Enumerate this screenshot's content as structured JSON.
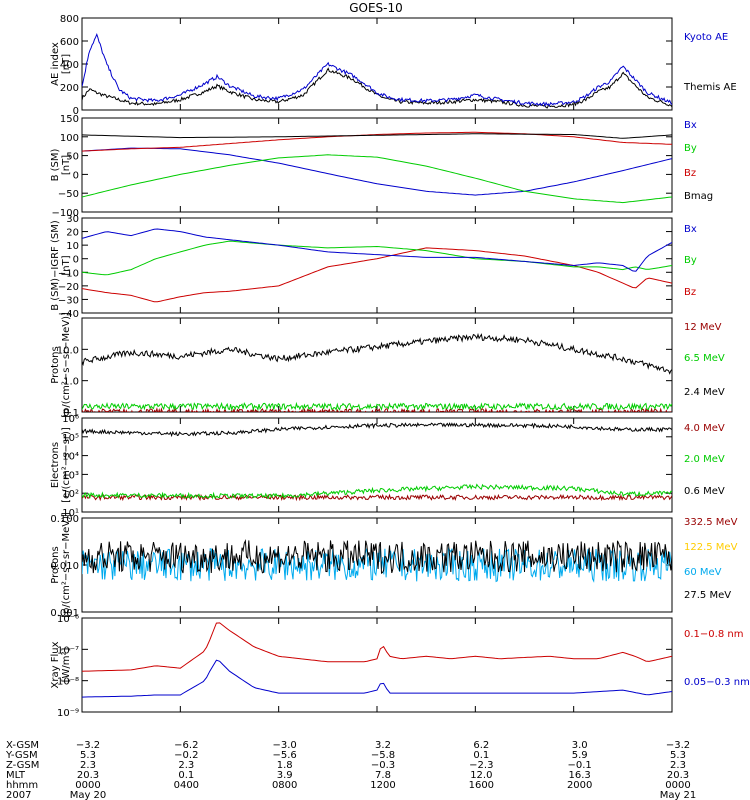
{
  "title": "GOES-10",
  "colors": {
    "black": "#000000",
    "blue": "#0000cc",
    "red": "#cc0000",
    "green": "#00cc00",
    "darkred": "#990000",
    "yellow": "#ffcc00",
    "cyan": "#00aaee"
  },
  "panels": [
    {
      "id": "ae",
      "ylabel": [
        "AE index",
        "[nT]"
      ],
      "scale": "linear",
      "ylim": [
        0,
        800
      ],
      "ticks": [
        {
          "v": 0,
          "t": "0"
        },
        {
          "v": 200,
          "t": "200"
        },
        {
          "v": 400,
          "t": "400"
        },
        {
          "v": 600,
          "t": "600"
        },
        {
          "v": 800,
          "t": "800"
        }
      ],
      "legend": [
        {
          "label": "Kyoto AE",
          "color": "#0000cc"
        },
        {
          "label": "Themis AE",
          "color": "#000000"
        }
      ]
    },
    {
      "id": "bsm",
      "ylabel": [
        "B (SM)",
        "[nT]"
      ],
      "scale": "linear",
      "ylim": [
        -100,
        150
      ],
      "ticks": [
        {
          "v": -100,
          "t": "−100"
        },
        {
          "v": -50,
          "t": "−50"
        },
        {
          "v": 0,
          "t": "0"
        },
        {
          "v": 50,
          "t": "50"
        },
        {
          "v": 100,
          "t": "100"
        },
        {
          "v": 150,
          "t": "150"
        }
      ],
      "legend": [
        {
          "label": "Bx",
          "color": "#0000cc"
        },
        {
          "label": "By",
          "color": "#00cc00"
        },
        {
          "label": "Bz",
          "color": "#cc0000"
        },
        {
          "label": "Bmag",
          "color": "#000000"
        }
      ]
    },
    {
      "id": "bigrf",
      "ylabel": [
        "B (SM)−IGRF (SM)",
        "[nT]"
      ],
      "scale": "linear",
      "ylim": [
        -40,
        30
      ],
      "ticks": [
        {
          "v": -40,
          "t": "−40"
        },
        {
          "v": -30,
          "t": "−30"
        },
        {
          "v": -20,
          "t": "−20"
        },
        {
          "v": -10,
          "t": "−10"
        },
        {
          "v": 0,
          "t": "0"
        },
        {
          "v": 10,
          "t": "10"
        },
        {
          "v": 20,
          "t": "20"
        },
        {
          "v": 30,
          "t": "30"
        }
      ],
      "legend": [
        {
          "label": "Bx",
          "color": "#0000cc"
        },
        {
          "label": "By",
          "color": "#00cc00"
        },
        {
          "label": "Bz",
          "color": "#cc0000"
        }
      ]
    },
    {
      "id": "protons1",
      "ylabel": [
        "Protons",
        "[p/(cm²−s−sr−MeV)]"
      ],
      "scale": "log",
      "ylim": [
        0.1,
        100
      ],
      "ticks": [
        {
          "v": 0.1,
          "t": "0.1"
        },
        {
          "v": 1,
          "t": "1.0"
        },
        {
          "v": 10,
          "t": "10.0"
        }
      ],
      "legend": [
        {
          "label": "12 MeV",
          "color": "#990000"
        },
        {
          "label": "6.5 MeV",
          "color": "#00cc00"
        },
        {
          "label": "2.4 MeV",
          "color": "#000000"
        }
      ]
    },
    {
      "id": "electrons",
      "ylabel": [
        "Electrons",
        "[e/(cm²−s−sr)]"
      ],
      "scale": "log",
      "ylim": [
        10,
        1000000
      ],
      "ticks": [
        {
          "v": 10,
          "t": "10¹"
        },
        {
          "v": 100,
          "t": "10²"
        },
        {
          "v": 1000,
          "t": "10³"
        },
        {
          "v": 10000,
          "t": "10⁴"
        },
        {
          "v": 100000,
          "t": "10⁵"
        },
        {
          "v": 1000000,
          "t": "10⁶"
        }
      ],
      "legend": [
        {
          "label": "4.0 MeV",
          "color": "#990000"
        },
        {
          "label": "2.0 MeV",
          "color": "#00cc00"
        },
        {
          "label": "0.6 MeV",
          "color": "#000000"
        }
      ]
    },
    {
      "id": "protons2",
      "ylabel": [
        "Protons",
        "[p/(cm²−s−sr−MeV)]"
      ],
      "scale": "log",
      "ylim": [
        0.001,
        0.1
      ],
      "ticks": [
        {
          "v": 0.001,
          "t": "0.001"
        },
        {
          "v": 0.01,
          "t": "0.010"
        },
        {
          "v": 0.1,
          "t": "0.100"
        }
      ],
      "legend": [
        {
          "label": "332.5 MeV",
          "color": "#990000"
        },
        {
          "label": "122.5 MeV",
          "color": "#ffcc00"
        },
        {
          "label": "60 MeV",
          "color": "#00aaee"
        },
        {
          "label": "27.5 MeV",
          "color": "#000000"
        }
      ]
    },
    {
      "id": "xray",
      "ylabel": [
        "Xray Flux",
        "[W/m²]"
      ],
      "scale": "log",
      "ylim": [
        1e-09,
        1e-06
      ],
      "ticks": [
        {
          "v": 1e-09,
          "t": "10⁻⁹"
        },
        {
          "v": 1e-08,
          "t": "10⁻⁸"
        },
        {
          "v": 1e-07,
          "t": "10⁻⁷"
        },
        {
          "v": 1e-06,
          "t": "10⁻⁶"
        }
      ],
      "legend": [
        {
          "label": "0.1−0.8 nm",
          "color": "#cc0000"
        },
        {
          "label": "0.05−0.3 nm",
          "color": "#0000cc"
        }
      ]
    }
  ],
  "chart_data": {
    "type": "line",
    "x_hours": [
      0,
      4,
      8,
      12,
      16,
      20,
      24
    ],
    "series": [
      {
        "panel": "ae",
        "name": "Kyoto AE",
        "x": [
          0,
          0.3,
          0.6,
          1,
          1.5,
          2,
          3,
          4,
          5,
          5.5,
          6,
          7,
          7.5,
          8,
          9,
          10,
          11,
          11.5,
          12,
          12.5,
          13,
          14,
          15,
          16,
          17,
          18,
          19,
          20,
          20.5,
          21,
          21.5,
          22,
          23,
          24
        ],
        "y": [
          200,
          520,
          650,
          400,
          180,
          100,
          80,
          130,
          230,
          290,
          210,
          120,
          110,
          100,
          180,
          400,
          300,
          230,
          150,
          110,
          90,
          80,
          90,
          130,
          90,
          60,
          50,
          70,
          120,
          200,
          250,
          380,
          150,
          60
        ]
      },
      {
        "panel": "ae",
        "name": "Themis AE",
        "x": [
          0,
          0.3,
          0.6,
          1,
          1.5,
          2,
          3,
          4,
          5,
          5.5,
          6,
          7,
          7.5,
          8,
          9,
          10,
          11,
          11.5,
          12,
          12.5,
          13,
          14,
          15,
          16,
          17,
          18,
          19,
          20,
          20.5,
          21,
          21.5,
          22,
          23,
          24
        ],
        "y": [
          100,
          180,
          150,
          120,
          90,
          60,
          50,
          90,
          160,
          210,
          160,
          90,
          80,
          70,
          130,
          350,
          270,
          200,
          130,
          90,
          70,
          60,
          70,
          90,
          70,
          40,
          30,
          50,
          90,
          160,
          200,
          320,
          110,
          40
        ]
      },
      {
        "panel": "bsm",
        "name": "Bmag",
        "x": [
          0,
          4,
          8,
          12,
          16,
          20,
          22,
          24
        ],
        "y": [
          105,
          98,
          100,
          104,
          108,
          106,
          96,
          105
        ]
      },
      {
        "panel": "bsm",
        "name": "Bz",
        "x": [
          0,
          2,
          4,
          6,
          8,
          10,
          12,
          14,
          16,
          18,
          20,
          22,
          24
        ],
        "y": [
          62,
          68,
          72,
          82,
          92,
          100,
          106,
          110,
          112,
          108,
          100,
          85,
          80
        ]
      },
      {
        "panel": "bsm",
        "name": "By",
        "x": [
          0,
          2,
          4,
          6,
          8,
          10,
          12,
          14,
          16,
          18,
          20,
          22,
          24
        ],
        "y": [
          -60,
          -28,
          0,
          24,
          44,
          52,
          46,
          22,
          -10,
          -45,
          -65,
          -75,
          -60
        ]
      },
      {
        "panel": "bsm",
        "name": "Bx",
        "x": [
          0,
          2,
          4,
          6,
          8,
          10,
          12,
          14,
          16,
          18,
          20,
          22,
          24
        ],
        "y": [
          62,
          70,
          68,
          52,
          30,
          2,
          -25,
          -45,
          -55,
          -45,
          -20,
          10,
          42
        ]
      },
      {
        "panel": "bigrf",
        "name": "Bx",
        "x": [
          0,
          1,
          2,
          3,
          4,
          5,
          6,
          8,
          10,
          12,
          14,
          16,
          18,
          20,
          21,
          22,
          22.5,
          23,
          24
        ],
        "y": [
          15,
          20,
          17,
          22,
          20,
          16,
          14,
          10,
          5,
          3,
          1,
          1,
          -2,
          -5,
          -3,
          -5,
          -10,
          2,
          12
        ]
      },
      {
        "panel": "bigrf",
        "name": "By",
        "x": [
          0,
          1,
          2,
          3,
          4,
          5,
          6,
          8,
          10,
          12,
          14,
          16,
          18,
          20,
          21,
          22,
          22.5,
          23,
          24
        ],
        "y": [
          -10,
          -12,
          -8,
          0,
          5,
          10,
          13,
          10,
          8,
          9,
          6,
          0,
          -2,
          -6,
          -6,
          -8,
          -6,
          -8,
          -5
        ]
      },
      {
        "panel": "bigrf",
        "name": "Bz",
        "x": [
          0,
          1,
          2,
          3,
          4,
          5,
          6,
          8,
          10,
          12,
          14,
          16,
          18,
          20,
          21,
          22,
          22.5,
          23,
          24
        ],
        "y": [
          -22,
          -25,
          -27,
          -32,
          -28,
          -25,
          -24,
          -20,
          -6,
          0,
          8,
          6,
          2,
          -5,
          -10,
          -18,
          -22,
          -14,
          -18
        ]
      },
      {
        "panel": "protons1",
        "name": "2.4 MeV",
        "x": [
          0,
          2,
          4,
          6,
          8,
          10,
          12,
          14,
          16,
          18,
          20,
          22,
          24
        ],
        "y": [
          4,
          8,
          6,
          10,
          5,
          8,
          12,
          18,
          25,
          20,
          10,
          5,
          2
        ]
      },
      {
        "panel": "protons1",
        "name": "6.5 MeV",
        "x": [
          0,
          4,
          8,
          12,
          16,
          20,
          24
        ],
        "y": [
          0.15,
          0.15,
          0.15,
          0.15,
          0.15,
          0.15,
          0.15
        ]
      },
      {
        "panel": "protons1",
        "name": "12 MeV",
        "x": [
          0,
          4,
          8,
          12,
          16,
          20,
          24
        ],
        "y": [
          0.1,
          0.1,
          0.1,
          0.1,
          0.1,
          0.1,
          0.1
        ]
      },
      {
        "panel": "electrons",
        "name": "0.6 MeV",
        "x": [
          0,
          4,
          6,
          8,
          10,
          12,
          14,
          16,
          18,
          20,
          22,
          24
        ],
        "y": [
          200000,
          140000,
          160000,
          250000,
          330000,
          400000,
          420000,
          420000,
          400000,
          350000,
          240000,
          250000
        ]
      },
      {
        "panel": "electrons",
        "name": "2.0 MeV",
        "x": [
          0,
          8,
          12,
          16,
          20,
          22,
          24
        ],
        "y": [
          80,
          70,
          140,
          220,
          180,
          90,
          100
        ]
      },
      {
        "panel": "electrons",
        "name": "4.0 MeV",
        "x": [
          0,
          8,
          12,
          16,
          20,
          24
        ],
        "y": [
          60,
          60,
          60,
          60,
          60,
          60
        ]
      },
      {
        "panel": "protons2",
        "name": "27.5 MeV",
        "x": [
          0,
          8,
          16,
          24
        ],
        "y": [
          0.015,
          0.015,
          0.015,
          0.015
        ]
      },
      {
        "panel": "protons2",
        "name": "60 MeV",
        "x": [
          0,
          8,
          16,
          24
        ],
        "y": [
          0.01,
          0.01,
          0.01,
          0.01
        ]
      },
      {
        "panel": "xray",
        "name": "0.1−0.8 nm",
        "x": [
          0,
          2,
          3,
          4,
          5,
          5.2,
          5.5,
          6,
          7,
          8,
          10,
          11.5,
          12,
          12.2,
          12.5,
          13,
          14,
          15,
          16,
          17,
          18,
          19,
          20,
          21,
          22,
          22.5,
          23,
          24
        ],
        "y": [
          2e-08,
          2.2e-08,
          3e-08,
          2.5e-08,
          9e-08,
          2e-07,
          8e-07,
          4e-07,
          1.2e-07,
          6e-08,
          4e-08,
          4e-08,
          5e-08,
          1.5e-07,
          6e-08,
          5e-08,
          6e-08,
          5e-08,
          6e-08,
          5e-08,
          5.5e-08,
          6e-08,
          5e-08,
          5e-08,
          8e-08,
          6e-08,
          4e-08,
          6e-08
        ]
      },
      {
        "panel": "xray",
        "name": "0.05−0.3 nm",
        "x": [
          0,
          2,
          3,
          4,
          5,
          5.2,
          5.5,
          6,
          7,
          8,
          10,
          11.5,
          12,
          12.2,
          12.5,
          13,
          14,
          16,
          18,
          20,
          22,
          23,
          24
        ],
        "y": [
          3e-09,
          3.2e-09,
          3.5e-09,
          3.5e-09,
          1e-08,
          2e-08,
          5e-08,
          2e-08,
          6e-09,
          4e-09,
          4e-09,
          4e-09,
          5e-09,
          1e-08,
          4e-09,
          4e-09,
          4e-09,
          4e-09,
          4e-09,
          4e-09,
          5e-09,
          3.5e-09,
          4.5e-09
        ]
      }
    ]
  },
  "orbit": {
    "row_labels": [
      "X-GSM",
      "Y-GSM",
      "Z-GSM",
      "MLT",
      "hhmm",
      "2007"
    ],
    "columns": [
      [
        "−3.2",
        "5.3",
        "2.3",
        "20.3",
        "0000",
        "May 20"
      ],
      [
        "−6.2",
        "−0.2",
        "2.3",
        "0.1",
        "0400",
        ""
      ],
      [
        "−3.0",
        "−5.6",
        "1.8",
        "3.9",
        "0800",
        ""
      ],
      [
        "3.2",
        "−5.8",
        "−0.3",
        "7.8",
        "1200",
        ""
      ],
      [
        "6.2",
        "0.1",
        "−2.3",
        "12.0",
        "1600",
        ""
      ],
      [
        "3.0",
        "5.9",
        "−0.1",
        "16.3",
        "2000",
        ""
      ],
      [
        "−3.2",
        "5.3",
        "2.3",
        "20.3",
        "0000",
        "May 21"
      ]
    ]
  }
}
